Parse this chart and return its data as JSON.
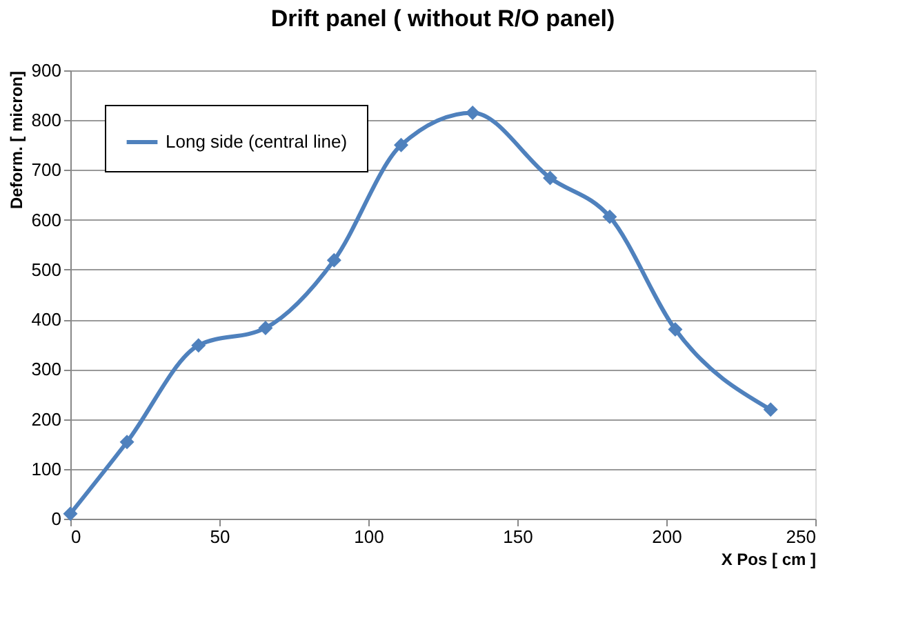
{
  "chart_data": {
    "type": "line",
    "title": "Drift panel ( without R/O panel)",
    "xlabel": "X Pos [ cm ]",
    "ylabel": "Deform. [ micron]",
    "x": [
      0,
      19,
      43,
      65.5,
      88.5,
      111,
      135,
      161,
      181,
      203,
      235
    ],
    "series": [
      {
        "name": "Long side (central line)",
        "color": "#4f81bd",
        "values": [
          10,
          154,
          348,
          383,
          519,
          750,
          815,
          684,
          606,
          380,
          219
        ]
      }
    ],
    "xlim": [
      0,
      250
    ],
    "xticks": [
      0,
      50,
      100,
      150,
      200,
      250
    ],
    "ylim": [
      0,
      900
    ],
    "yticks": [
      0,
      100,
      200,
      300,
      400,
      500,
      600,
      700,
      800,
      900
    ],
    "grid": "y",
    "legend": "top left",
    "marker": "diamond",
    "line_style": "solid"
  }
}
